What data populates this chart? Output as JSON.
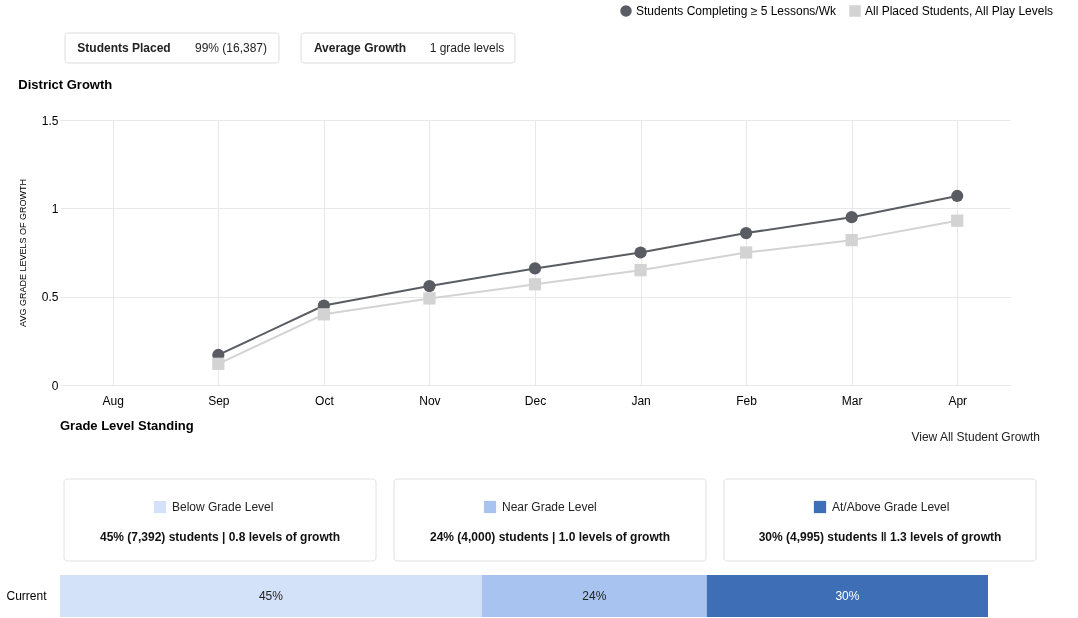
{
  "chart_data": [
    {
      "type": "other",
      "annotations": [
        "Students Placed",
        "99% (16,387)",
        "Average Growth",
        "1 grade levels"
      ]
    },
    {
      "type": "line",
      "title": "District Growth",
      "ylabel": "AVG GRADE LEVELS OF GROWTH",
      "categories": [
        "Aug",
        "Sep",
        "Oct",
        "Nov",
        "Dec",
        "Jan",
        "Feb",
        "Mar",
        "Apr"
      ],
      "series": [
        {
          "name": "Students Completing ≥ 5 Lessons/Wk",
          "color": "#595d63",
          "marker": "circle",
          "values": [
            null,
            0.17,
            0.45,
            0.56,
            0.66,
            0.75,
            0.86,
            0.95,
            1.07
          ]
        },
        {
          "name": "All Placed Students, All Play Levels",
          "color": "#d3d3d3",
          "marker": "square",
          "values": [
            null,
            0.12,
            0.4,
            0.49,
            0.57,
            0.65,
            0.75,
            0.82,
            0.93
          ]
        }
      ],
      "ylim": [
        0,
        1.5
      ],
      "yticks": [
        0,
        0.5,
        1,
        1.5
      ],
      "grid": true,
      "legend": "top right"
    },
    {
      "type": "bar",
      "orientation": "horizontal",
      "stacked": true,
      "title": "Grade Level Standing",
      "categories": [
        "Current"
      ],
      "series": [
        {
          "name": "Below Grade Level",
          "color": "#d3e2f8",
          "values": [
            45
          ],
          "value_labels": [
            "45%"
          ]
        },
        {
          "name": "Near Grade Level",
          "color": "#a9c3f0",
          "values": [
            24
          ],
          "value_labels": [
            "24%"
          ]
        },
        {
          "name": "At/Above Grade Level",
          "color": "#3e6fb6",
          "values": [
            30
          ],
          "value_labels": [
            "30%"
          ]
        }
      ],
      "annotations": [
        "View All Student Growth",
        "45% (7,392) students | 0.8 levels of growth",
        "24% (4,000) students | 1.0 levels of growth",
        "30% (4,995) students ‖ 1.3 levels of growth"
      ],
      "legend": "top"
    }
  ]
}
